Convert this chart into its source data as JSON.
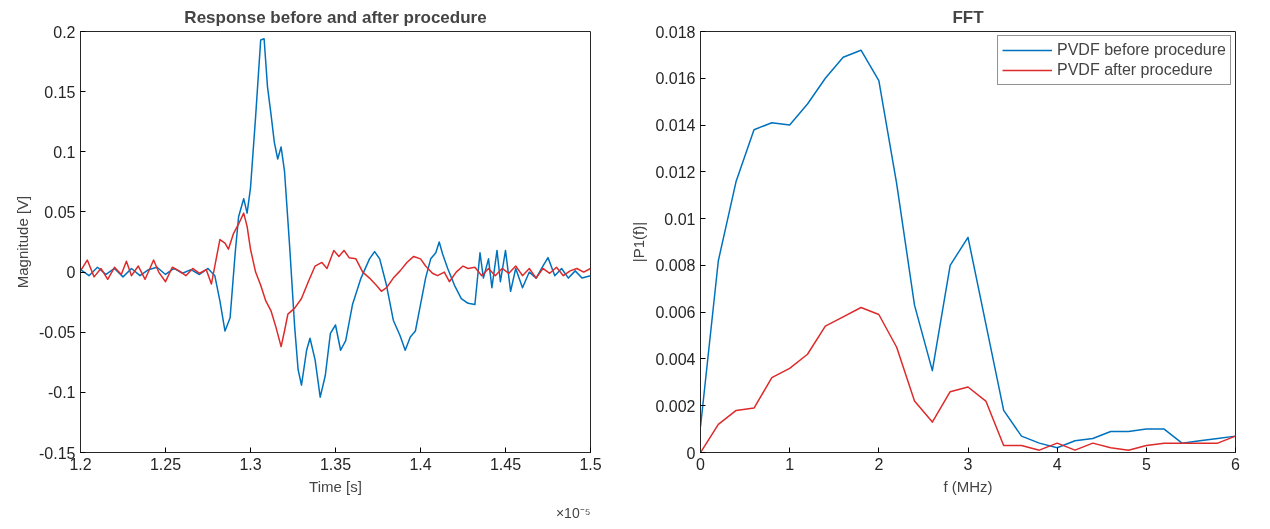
{
  "chart_data": [
    {
      "type": "line",
      "title": "Response before and after procedure",
      "xlabel": "Time [s]",
      "ylabel": "Magnitude [V]",
      "xlim": [
        1.2,
        1.5
      ],
      "xticks": [
        1.2,
        1.25,
        1.3,
        1.35,
        1.4,
        1.45,
        1.5
      ],
      "ylim": [
        -0.15,
        0.2
      ],
      "yticks": [
        -0.15,
        -0.1,
        -0.05,
        0,
        0.05,
        0.1,
        0.15,
        0.2
      ],
      "grid": false,
      "legend": false,
      "annotations": [
        "×10⁻⁵"
      ],
      "series": [
        {
          "color": "#0072bd",
          "x": [
            1.2,
            1.205,
            1.21,
            1.215,
            1.22,
            1.225,
            1.23,
            1.235,
            1.24,
            1.245,
            1.25,
            1.255,
            1.26,
            1.265,
            1.27,
            1.275,
            1.279,
            1.282,
            1.285,
            1.288,
            1.291,
            1.293,
            1.296,
            1.298,
            1.3,
            1.303,
            1.306,
            1.308,
            1.31,
            1.312,
            1.314,
            1.316,
            1.318,
            1.32,
            1.323,
            1.326,
            1.328,
            1.33,
            1.333,
            1.335,
            1.338,
            1.341,
            1.344,
            1.347,
            1.35,
            1.353,
            1.356,
            1.36,
            1.365,
            1.37,
            1.373,
            1.376,
            1.38,
            1.384,
            1.388,
            1.391,
            1.394,
            1.397,
            1.4,
            1.403,
            1.406,
            1.409,
            1.411,
            1.413,
            1.416,
            1.42,
            1.424,
            1.428,
            1.432,
            1.435,
            1.437,
            1.44,
            1.442,
            1.445,
            1.447,
            1.45,
            1.453,
            1.456,
            1.46,
            1.464,
            1.468,
            1.472,
            1.475,
            1.479,
            1.483,
            1.487,
            1.491,
            1.495,
            1.5
          ],
          "values": [
            0.002,
            -0.003,
            0.004,
            -0.002,
            0.003,
            -0.004,
            0.003,
            -0.003,
            0.002,
            0.004,
            -0.002,
            0.003,
            -0.001,
            0.002,
            -0.002,
            0.003,
            -0.003,
            -0.024,
            -0.049,
            -0.038,
            0.016,
            0.046,
            0.061,
            0.049,
            0.07,
            0.129,
            0.193,
            0.194,
            0.154,
            0.132,
            0.108,
            0.094,
            0.104,
            0.084,
            0.022,
            -0.046,
            -0.081,
            -0.094,
            -0.065,
            -0.055,
            -0.073,
            -0.104,
            -0.086,
            -0.051,
            -0.044,
            -0.065,
            -0.057,
            -0.027,
            -0.005,
            0.011,
            0.017,
            0.011,
            -0.011,
            -0.04,
            -0.053,
            -0.065,
            -0.054,
            -0.049,
            -0.027,
            -0.005,
            0.011,
            0.016,
            0.025,
            0.015,
            0.003,
            -0.011,
            -0.022,
            -0.026,
            -0.027,
            0.016,
            -0.005,
            0.011,
            -0.013,
            0.018,
            -0.008,
            0.018,
            -0.016,
            0.003,
            -0.013,
            0,
            -0.005,
            0.005,
            0.012,
            -0.003,
            0.003,
            -0.005,
            0.001,
            -0.005,
            -0.003
          ]
        },
        {
          "color": "#dd2a2a",
          "x": [
            1.2,
            1.204,
            1.208,
            1.212,
            1.216,
            1.22,
            1.224,
            1.227,
            1.23,
            1.234,
            1.238,
            1.243,
            1.246,
            1.25,
            1.254,
            1.258,
            1.262,
            1.266,
            1.27,
            1.274,
            1.277,
            1.279,
            1.282,
            1.285,
            1.287,
            1.29,
            1.293,
            1.296,
            1.298,
            1.3,
            1.303,
            1.306,
            1.309,
            1.312,
            1.315,
            1.318,
            1.32,
            1.322,
            1.326,
            1.33,
            1.334,
            1.338,
            1.342,
            1.345,
            1.349,
            1.352,
            1.355,
            1.358,
            1.362,
            1.366,
            1.37,
            1.374,
            1.377,
            1.38,
            1.384,
            1.388,
            1.392,
            1.396,
            1.4,
            1.403,
            1.407,
            1.41,
            1.414,
            1.417,
            1.421,
            1.425,
            1.428,
            1.432,
            1.436,
            1.44,
            1.444,
            1.448,
            1.452,
            1.456,
            1.46,
            1.464,
            1.468,
            1.472,
            1.476,
            1.48,
            1.484,
            1.488,
            1.492,
            1.496,
            1.5
          ],
          "values": [
            0.001,
            0.01,
            -0.004,
            0.003,
            -0.006,
            0.004,
            -0.002,
            0.009,
            -0.003,
            0.005,
            -0.006,
            0.01,
            0,
            -0.008,
            0.004,
            0.001,
            -0.003,
            0.003,
            -0.001,
            0.002,
            -0.01,
            0.005,
            0.027,
            0.024,
            0.019,
            0.032,
            0.04,
            0.049,
            0.038,
            0.019,
            0,
            -0.011,
            -0.024,
            -0.032,
            -0.046,
            -0.062,
            -0.049,
            -0.035,
            -0.03,
            -0.022,
            -0.008,
            0.005,
            0.008,
            0.003,
            0.018,
            0.013,
            0.018,
            0.012,
            0.011,
            0,
            -0.005,
            -0.011,
            -0.016,
            -0.013,
            -0.005,
            0.001,
            0.008,
            0.013,
            0.011,
            0.005,
            -0.001,
            -0.003,
            0,
            -0.008,
            0,
            0.005,
            0.003,
            0.004,
            -0.003,
            0.003,
            -0.003,
            0.003,
            -0.001,
            0.005,
            -0.003,
            0.003,
            -0.005,
            0.003,
            -0.001,
            0.004,
            -0.003,
            0.001,
            0.003,
            0,
            0.003
          ]
        }
      ]
    },
    {
      "type": "line",
      "title": "FFT",
      "xlabel": "f (MHz)",
      "ylabel": "|P1(f)|",
      "xlim": [
        0,
        6
      ],
      "xticks": [
        0,
        1,
        2,
        3,
        4,
        5,
        6
      ],
      "ylim": [
        0,
        0.018
      ],
      "yticks": [
        0,
        0.002,
        0.004,
        0.006,
        0.008,
        0.01,
        0.012,
        0.014,
        0.016,
        0.018
      ],
      "grid": false,
      "legend": "top right",
      "x": [
        0,
        0.2,
        0.4,
        0.6,
        0.8,
        1,
        1.2,
        1.4,
        1.6,
        1.8,
        2,
        2.2,
        2.4,
        2.6,
        2.8,
        3,
        3.2,
        3.4,
        3.6,
        3.8,
        4,
        4.2,
        4.4,
        4.6,
        4.8,
        5,
        5.2,
        5.4,
        5.6,
        5.8,
        6
      ],
      "series": [
        {
          "name": "PVDF before procedure",
          "color": "#0072bd",
          "values": [
            0.0011,
            0.0082,
            0.0116,
            0.0138,
            0.0141,
            0.014,
            0.0149,
            0.016,
            0.0169,
            0.0172,
            0.0159,
            0.0115,
            0.0063,
            0.0035,
            0.008,
            0.0092,
            0.0055,
            0.0018,
            0.0007,
            0.0004,
            0.0002,
            0.0005,
            0.0006,
            0.0009,
            0.0009,
            0.001,
            0.001,
            0.0004,
            0.0005,
            0.0006,
            0.0007
          ]
        },
        {
          "name": "PVDF after procedure",
          "color": "#dd2a2a",
          "values": [
            0,
            0.0012,
            0.0018,
            0.0019,
            0.0032,
            0.0036,
            0.0042,
            0.0054,
            0.0058,
            0.0062,
            0.0059,
            0.0045,
            0.0022,
            0.0013,
            0.0026,
            0.0028,
            0.0022,
            0.0003,
            0.0003,
            0.0001,
            0.0004,
            0.0001,
            0.0004,
            0.0002,
            0.0001,
            0.0003,
            0.0004,
            0.0004,
            0.0004,
            0.0004,
            0.0007
          ]
        }
      ]
    }
  ]
}
